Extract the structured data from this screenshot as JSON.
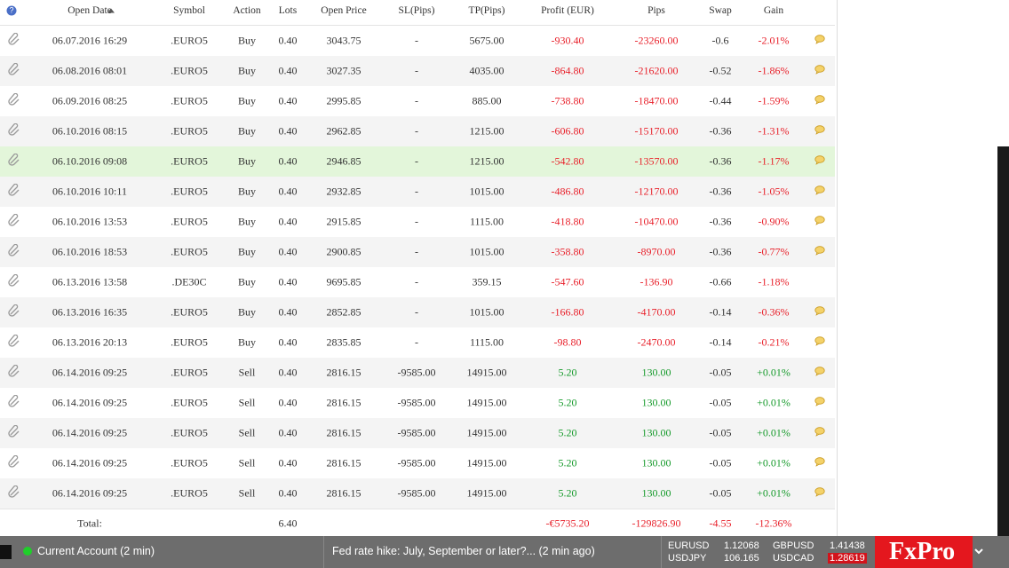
{
  "table": {
    "help_icon": "?",
    "headers": [
      "Open Date",
      "Symbol",
      "Action",
      "Lots",
      "Open Price",
      "SL(Pips)",
      "TP(Pips)",
      "Profit (EUR)",
      "Pips",
      "Swap",
      "Gain"
    ],
    "rows": [
      [
        "06.07.2016 16:29",
        ".EURO5",
        "Buy",
        "0.40",
        "3043.75",
        "-",
        "5675.00",
        "-930.40",
        "-23260.00",
        "-0.6",
        "-2.01%"
      ],
      [
        "06.08.2016 08:01",
        ".EURO5",
        "Buy",
        "0.40",
        "3027.35",
        "-",
        "4035.00",
        "-864.80",
        "-21620.00",
        "-0.52",
        "-1.86%"
      ],
      [
        "06.09.2016 08:25",
        ".EURO5",
        "Buy",
        "0.40",
        "2995.85",
        "-",
        "885.00",
        "-738.80",
        "-18470.00",
        "-0.44",
        "-1.59%"
      ],
      [
        "06.10.2016 08:15",
        ".EURO5",
        "Buy",
        "0.40",
        "2962.85",
        "-",
        "1215.00",
        "-606.80",
        "-15170.00",
        "-0.36",
        "-1.31%"
      ],
      [
        "06.10.2016 09:08",
        ".EURO5",
        "Buy",
        "0.40",
        "2946.85",
        "-",
        "1215.00",
        "-542.80",
        "-13570.00",
        "-0.36",
        "-1.17%"
      ],
      [
        "06.10.2016 10:11",
        ".EURO5",
        "Buy",
        "0.40",
        "2932.85",
        "-",
        "1015.00",
        "-486.80",
        "-12170.00",
        "-0.36",
        "-1.05%"
      ],
      [
        "06.10.2016 13:53",
        ".EURO5",
        "Buy",
        "0.40",
        "2915.85",
        "-",
        "1115.00",
        "-418.80",
        "-10470.00",
        "-0.36",
        "-0.90%"
      ],
      [
        "06.10.2016 18:53",
        ".EURO5",
        "Buy",
        "0.40",
        "2900.85",
        "-",
        "1015.00",
        "-358.80",
        "-8970.00",
        "-0.36",
        "-0.77%"
      ],
      [
        "06.13.2016 13:58",
        ".DE30C",
        "Buy",
        "0.40",
        "9695.85",
        "-",
        "359.15",
        "-547.60",
        "-136.90",
        "-0.66",
        "-1.18%"
      ],
      [
        "06.13.2016 16:35",
        ".EURO5",
        "Buy",
        "0.40",
        "2852.85",
        "-",
        "1015.00",
        "-166.80",
        "-4170.00",
        "-0.14",
        "-0.36%"
      ],
      [
        "06.13.2016 20:13",
        ".EURO5",
        "Buy",
        "0.40",
        "2835.85",
        "-",
        "1115.00",
        "-98.80",
        "-2470.00",
        "-0.14",
        "-0.21%"
      ],
      [
        "06.14.2016 09:25",
        ".EURO5",
        "Sell",
        "0.40",
        "2816.15",
        "-9585.00",
        "14915.00",
        "5.20",
        "130.00",
        "-0.05",
        "+0.01%"
      ],
      [
        "06.14.2016 09:25",
        ".EURO5",
        "Sell",
        "0.40",
        "2816.15",
        "-9585.00",
        "14915.00",
        "5.20",
        "130.00",
        "-0.05",
        "+0.01%"
      ],
      [
        "06.14.2016 09:25",
        ".EURO5",
        "Sell",
        "0.40",
        "2816.15",
        "-9585.00",
        "14915.00",
        "5.20",
        "130.00",
        "-0.05",
        "+0.01%"
      ],
      [
        "06.14.2016 09:25",
        ".EURO5",
        "Sell",
        "0.40",
        "2816.15",
        "-9585.00",
        "14915.00",
        "5.20",
        "130.00",
        "-0.05",
        "+0.01%"
      ],
      [
        "06.14.2016 09:25",
        ".EURO5",
        "Sell",
        "0.40",
        "2816.15",
        "-9585.00",
        "14915.00",
        "5.20",
        "130.00",
        "-0.05",
        "+0.01%"
      ]
    ],
    "comment_icons": [
      true,
      true,
      true,
      true,
      true,
      true,
      true,
      true,
      false,
      true,
      true,
      true,
      true,
      true,
      true,
      true
    ],
    "highlight_row": 4,
    "total": {
      "label": "Total:",
      "lots": "6.40",
      "profit": "-€5735.20",
      "pips": "-129826.90",
      "swap": "-4.55",
      "gain": "-12.36%"
    }
  },
  "footer": {
    "account": "Current Account (2 min)",
    "news": "Fed rate hike: July, September or later?... (2 min ago)",
    "quotes": [
      {
        "symbol": "EURUSD",
        "price": "1.12068"
      },
      {
        "symbol": "GBPUSD",
        "price": "1.41438"
      },
      {
        "symbol": "USDJPY",
        "price": "106.165"
      },
      {
        "symbol": "USDCAD",
        "price": "1.28619"
      }
    ],
    "logo": "FxPro"
  }
}
